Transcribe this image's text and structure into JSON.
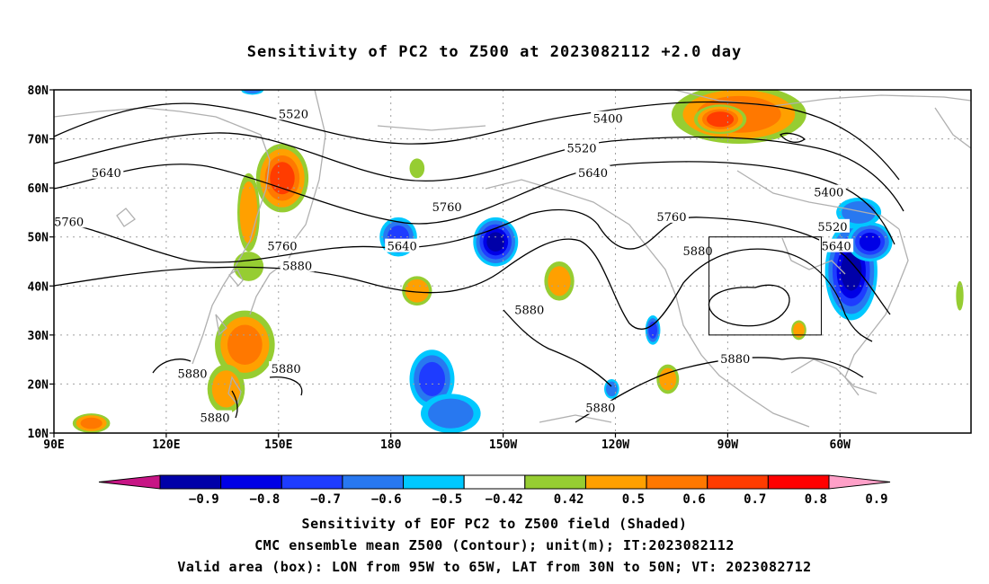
{
  "title": "Sensitivity of PC2 to Z500 at 2023082112 +2.0 day",
  "map": {
    "lon_labels": [
      "90E",
      "120E",
      "150E",
      "180",
      "150W",
      "120W",
      "90W",
      "60W"
    ],
    "lat_labels": [
      "80N",
      "70N",
      "60N",
      "50N",
      "40N",
      "30N",
      "20N",
      "10N"
    ]
  },
  "contour_labels": [
    {
      "text": "5520",
      "lon": 154,
      "lat": 75
    },
    {
      "text": "5400",
      "lon": -122,
      "lat": 74
    },
    {
      "text": "5520",
      "lon": -129,
      "lat": 68
    },
    {
      "text": "5640",
      "lon": 104,
      "lat": 63
    },
    {
      "text": "5640",
      "lon": -126,
      "lat": 63
    },
    {
      "text": "5400",
      "lon": -63,
      "lat": 59
    },
    {
      "text": "5760",
      "lon": 94,
      "lat": 53
    },
    {
      "text": "5760",
      "lon": 195,
      "lat": 56
    },
    {
      "text": "5760",
      "lon": -105,
      "lat": 54
    },
    {
      "text": "5520",
      "lon": -62,
      "lat": 52
    },
    {
      "text": "5640",
      "lon": 183,
      "lat": 48
    },
    {
      "text": "5640",
      "lon": -61,
      "lat": 48
    },
    {
      "text": "5760",
      "lon": 151,
      "lat": 48
    },
    {
      "text": "5880",
      "lon": 155,
      "lat": 44
    },
    {
      "text": "5880",
      "lon": -98,
      "lat": 47
    },
    {
      "text": "5880",
      "lon": 217,
      "lat": 35
    },
    {
      "text": "5880",
      "lon": 127,
      "lat": 22
    },
    {
      "text": "5880",
      "lon": 152,
      "lat": 23
    },
    {
      "text": "5880",
      "lon": 133,
      "lat": 13
    },
    {
      "text": "5880",
      "lon": 236,
      "lat": 15
    },
    {
      "text": "5880",
      "lon": -88,
      "lat": 25
    }
  ],
  "valid_box": {
    "lon_min": -95,
    "lon_max": -65,
    "lat_min": 30,
    "lat_max": 50
  },
  "colorbar": {
    "labels": [
      "−0.9",
      "−0.8",
      "−0.7",
      "−0.6",
      "−0.5",
      "−0.42",
      "0.42",
      "0.5",
      "0.6",
      "0.7",
      "0.8",
      "0.9"
    ],
    "colors": {
      "below": "#c71585",
      "bins": [
        "#0000a8",
        "#0000e6",
        "#1e3cff",
        "#2878f0",
        "#00c8ff",
        "#ffffff",
        "#96cd32",
        "#ffa000",
        "#ff7800",
        "#ff3c00",
        "#ff0000"
      ],
      "above": "#ffa0c8"
    }
  },
  "shading": [
    {
      "lon": 303,
      "lat": 43,
      "rx": 7,
      "ry": 10,
      "v": -0.8
    },
    {
      "lon": 308,
      "lat": 49,
      "rx": 6,
      "ry": 4,
      "v": -0.7
    },
    {
      "lon": 305,
      "lat": 55,
      "rx": 6,
      "ry": 3,
      "v": -0.5
    },
    {
      "lon": 208,
      "lat": 49,
      "rx": 6,
      "ry": 5,
      "v": -0.8
    },
    {
      "lon": 182,
      "lat": 50,
      "rx": 5,
      "ry": 4,
      "v": -0.6
    },
    {
      "lon": 191,
      "lat": 21,
      "rx": 6,
      "ry": 6,
      "v": -0.6
    },
    {
      "lon": 196,
      "lat": 14,
      "rx": 8,
      "ry": 4,
      "v": -0.5
    },
    {
      "lon": 250,
      "lat": 31,
      "rx": 2,
      "ry": 3,
      "v": -0.6
    },
    {
      "lon": 239,
      "lat": 19,
      "rx": 2,
      "ry": 2,
      "v": -0.5
    },
    {
      "lon": 143,
      "lat": 80,
      "rx": 3,
      "ry": 1,
      "v": -0.5
    },
    {
      "lon": 273,
      "lat": 75,
      "rx": 18,
      "ry": 6,
      "v": 0.65
    },
    {
      "lon": 268,
      "lat": 74,
      "rx": 7,
      "ry": 3,
      "v": 0.75
    },
    {
      "lon": 151,
      "lat": 62,
      "rx": 7,
      "ry": 7,
      "v": 0.7
    },
    {
      "lon": 142,
      "lat": 55,
      "rx": 3,
      "ry": 8,
      "v": 0.55
    },
    {
      "lon": 142,
      "lat": 44,
      "rx": 4,
      "ry": 3,
      "v": 0.45
    },
    {
      "lon": 141,
      "lat": 28,
      "rx": 8,
      "ry": 7,
      "v": 0.6
    },
    {
      "lon": 136,
      "lat": 19,
      "rx": 5,
      "ry": 5,
      "v": 0.5
    },
    {
      "lon": 100,
      "lat": 12,
      "rx": 5,
      "ry": 2,
      "v": 0.6
    },
    {
      "lon": 187,
      "lat": 39,
      "rx": 4,
      "ry": 3,
      "v": 0.55
    },
    {
      "lon": 225,
      "lat": 41,
      "rx": 4,
      "ry": 4,
      "v": 0.5
    },
    {
      "lon": 254,
      "lat": 21,
      "rx": 3,
      "ry": 3,
      "v": 0.5
    },
    {
      "lon": 289,
      "lat": 31,
      "rx": 2,
      "ry": 2,
      "v": 0.5
    },
    {
      "lon": 187,
      "lat": 64,
      "rx": 2,
      "ry": 2,
      "v": 0.45
    },
    {
      "lon": 332,
      "lat": 38,
      "rx": 1,
      "ry": 3,
      "v": 0.45
    }
  ],
  "caption": {
    "line1": "Sensitivity of EOF PC2 to Z500 field (Shaded)",
    "line2": "CMC ensemble mean Z500 (Contour); unit(m); IT:2023082112",
    "line3": "Valid area (box): LON from 95W to 65W, LAT from 30N to 50N; VT: 2023082712"
  }
}
